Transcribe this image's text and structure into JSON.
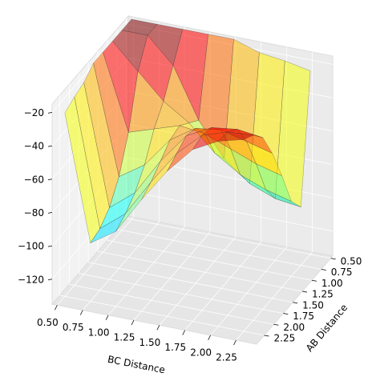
{
  "chart_data": {
    "type": "surface3d",
    "xlabel": "BC Distance",
    "ylabel": "AB Distance",
    "x": [
      0.5,
      0.75,
      1.0,
      1.25,
      1.5,
      1.75,
      2.0,
      2.25
    ],
    "y": [
      0.5,
      0.75,
      1.0,
      1.25,
      1.5,
      1.75,
      2.0,
      2.25
    ],
    "z": [
      [
        -15,
        -15,
        -15,
        -15,
        -15,
        -20,
        -22,
        -25
      ],
      [
        -15,
        -15,
        -30,
        -60,
        -80,
        -92,
        -98,
        -100
      ],
      [
        -15,
        -30,
        -45,
        -55,
        -70,
        -80,
        -86,
        -90
      ],
      [
        -15,
        -60,
        -55,
        -50,
        -52,
        -58,
        -64,
        -68
      ],
      [
        -15,
        -80,
        -70,
        -52,
        -42,
        -40,
        -44,
        -48
      ],
      [
        -20,
        -92,
        -80,
        -58,
        -40,
        -32,
        -30,
        -32
      ],
      [
        -22,
        -98,
        -86,
        -64,
        -44,
        -30,
        -25,
        -24
      ],
      [
        -25,
        -100,
        -90,
        -68,
        -48,
        -32,
        -24,
        -20
      ]
    ],
    "colormap": "jet",
    "xlim": [
      0.45,
      2.45
    ],
    "ylim": [
      0.45,
      2.45
    ],
    "zlim": [
      -135,
      -15
    ],
    "xticks": [
      {
        "value": 0.5,
        "label": "0.50"
      },
      {
        "value": 0.75,
        "label": "0.75"
      },
      {
        "value": 1.0,
        "label": "1.00"
      },
      {
        "value": 1.25,
        "label": "1.25"
      },
      {
        "value": 1.5,
        "label": "1.50"
      },
      {
        "value": 1.75,
        "label": "1.75"
      },
      {
        "value": 2.0,
        "label": "2.00"
      },
      {
        "value": 2.25,
        "label": "2.25"
      }
    ],
    "yticks": [
      {
        "value": 0.5,
        "label": "0.50"
      },
      {
        "value": 0.75,
        "label": "0.75"
      },
      {
        "value": 1.0,
        "label": "1.00"
      },
      {
        "value": 1.25,
        "label": "1.25"
      },
      {
        "value": 1.5,
        "label": "1.50"
      },
      {
        "value": 1.75,
        "label": "1.75"
      },
      {
        "value": 2.0,
        "label": "2.00"
      },
      {
        "value": 2.25,
        "label": "2.25"
      }
    ],
    "zticks": [
      {
        "value": -20,
        "label": "−20"
      },
      {
        "value": -40,
        "label": "−40"
      },
      {
        "value": -60,
        "label": "−60"
      },
      {
        "value": -80,
        "label": "−80"
      },
      {
        "value": -100,
        "label": "−100"
      },
      {
        "value": -120,
        "label": "−120"
      }
    ],
    "grid": true
  }
}
